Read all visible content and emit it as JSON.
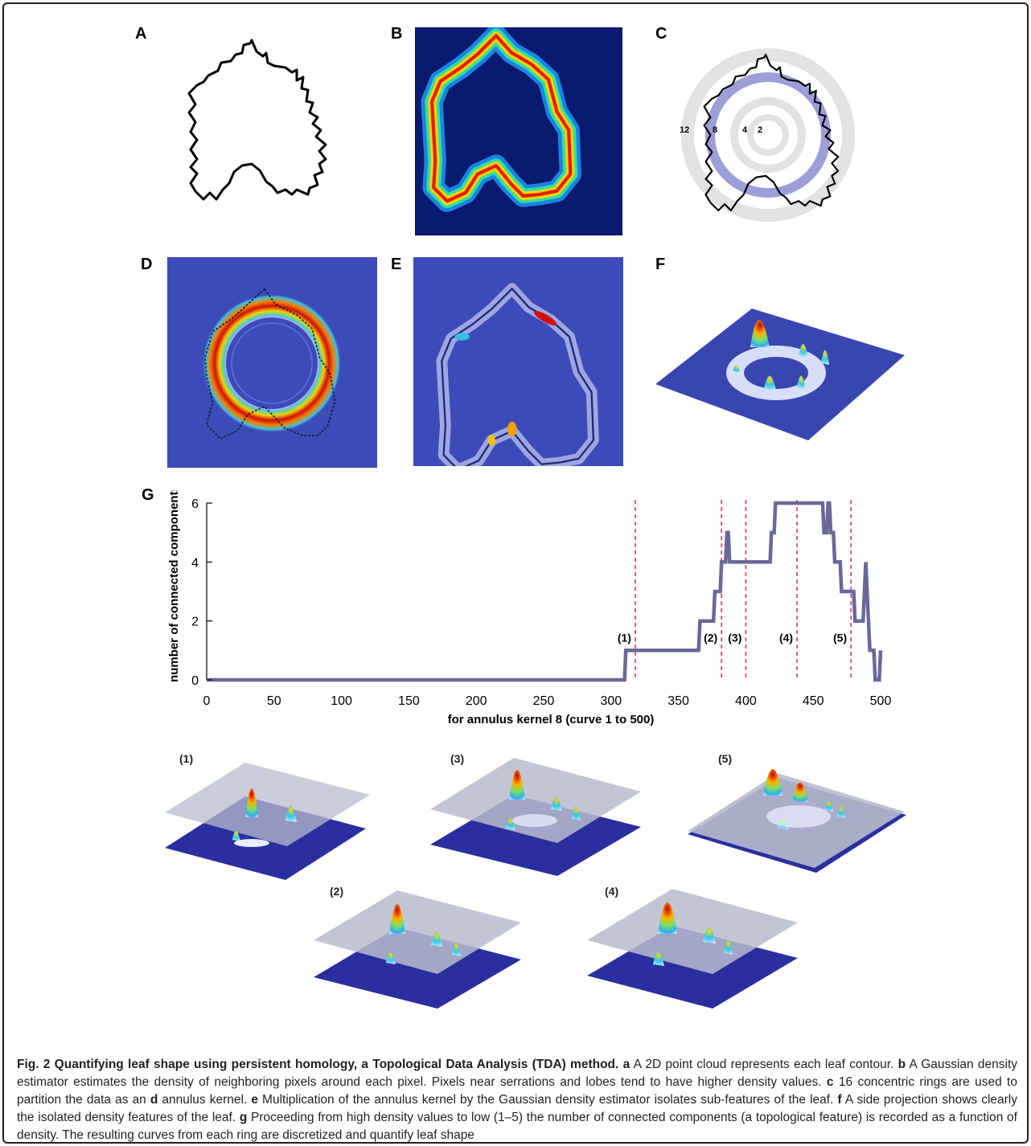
{
  "panel_labels": {
    "a": "A",
    "b": "B",
    "c": "C",
    "d": "D",
    "e": "E",
    "f": "F",
    "g": "G"
  },
  "ring_labels": [
    "12",
    "8",
    "4",
    "2"
  ],
  "chart_data": {
    "type": "line",
    "ylabel": "number of connected components",
    "xlabel": "for annulus kernel 8 (curve 1 to 500)",
    "xlim": [
      0,
      500
    ],
    "ylim": [
      0,
      6
    ],
    "xticks": [
      0,
      50,
      100,
      150,
      200,
      250,
      300,
      350,
      400,
      450,
      500
    ],
    "yticks": [
      0,
      2,
      4,
      6
    ],
    "series": [
      {
        "color": "#6a6899",
        "x": [
          0,
          310,
          311,
          365,
          366,
          376,
          377,
          381,
          382,
          384,
          385,
          386,
          387,
          388,
          389,
          400,
          401,
          418,
          419,
          421,
          422,
          457,
          458,
          460,
          461,
          462,
          463,
          465,
          466,
          470,
          471,
          480,
          481,
          487,
          488,
          489,
          490,
          491,
          492,
          495,
          496,
          499,
          500
        ],
        "y": [
          0,
          0,
          1,
          1,
          2,
          2,
          3,
          3,
          4,
          4,
          4,
          5,
          5,
          4,
          4,
          4,
          4,
          4,
          5,
          5,
          6,
          6,
          5,
          5,
          6,
          6,
          5,
          5,
          4,
          4,
          3,
          3,
          2,
          2,
          3,
          4,
          3,
          2,
          1,
          1,
          0,
          0,
          1
        ]
      }
    ],
    "markers": [
      {
        "x": 318,
        "label": "(1)"
      },
      {
        "x": 382,
        "label": "(2)"
      },
      {
        "x": 400,
        "label": "(3)"
      },
      {
        "x": 438,
        "label": "(4)"
      },
      {
        "x": 478,
        "label": "(5)"
      }
    ],
    "marker_color": "#e8356a"
  },
  "slice_labels": [
    "(1)",
    "(3)",
    "(5)",
    "(2)",
    "(4)"
  ],
  "caption": {
    "title": "Fig. 2 Quantifying leaf shape using persistent homology, a Topological Data Analysis (TDA) method.",
    "parts": [
      {
        "k": "a",
        "t": "A 2D point cloud represents each leaf contour."
      },
      {
        "k": "b",
        "t": "A Gaussian density estimator estimates the density of neighboring pixels around each pixel. Pixels near serrations and lobes tend to have higher density values."
      },
      {
        "k": "c",
        "t": "16 concentric rings are used to partition the data as an"
      },
      {
        "k": "d",
        "t": "annulus kernel."
      },
      {
        "k": "e",
        "t": "Multiplication of the annulus kernel by the Gaussian density estimator isolates sub-features of the leaf."
      },
      {
        "k": "f",
        "t": "A side projection shows clearly the isolated density features of the leaf."
      },
      {
        "k": "g",
        "t": "Proceeding from high density values to low (1–5) the number of connected components (a topological feature) is recorded as a function of density. The resulting curves from each ring are discretized and quantify leaf shape"
      }
    ]
  }
}
